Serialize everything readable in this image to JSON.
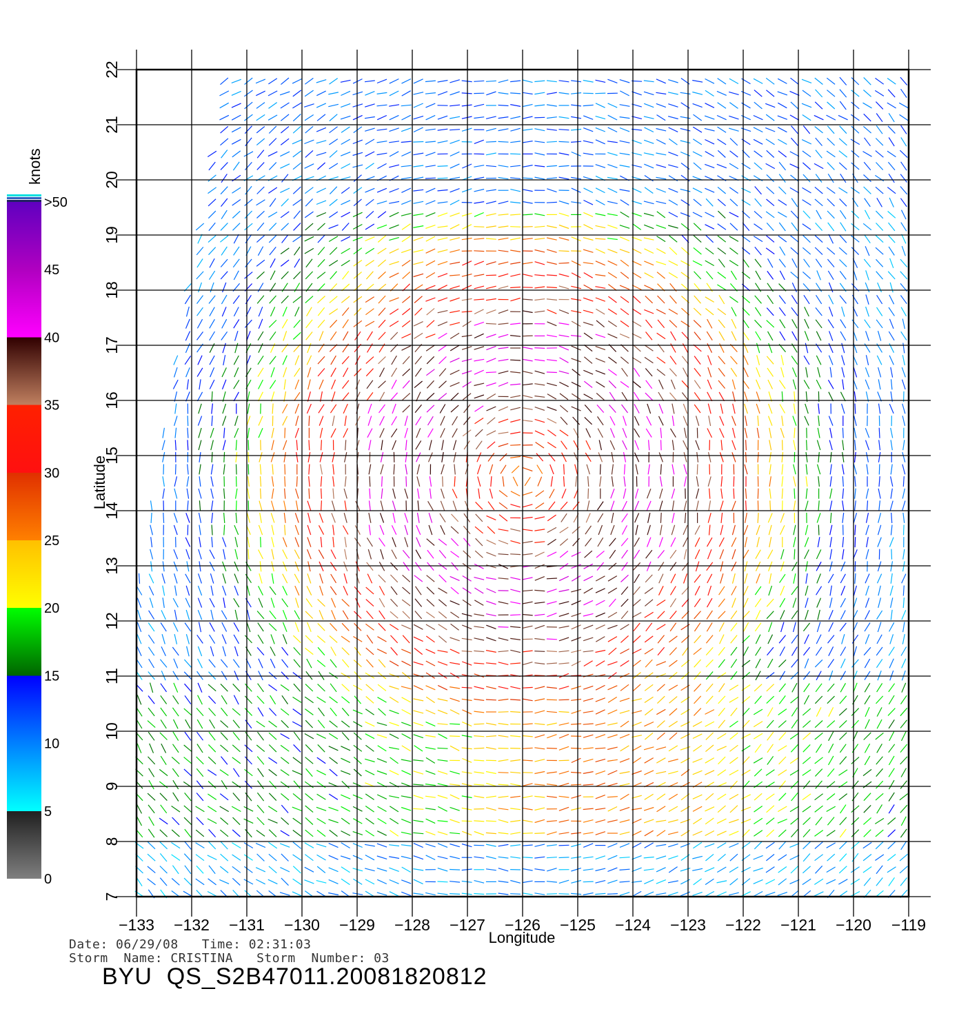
{
  "chart_data": {
    "type": "wind_barb_map",
    "xlabel": "Longitude",
    "ylabel": "Latitude",
    "xlim": [
      -133,
      -119
    ],
    "ylim": [
      7,
      22
    ],
    "x_ticks": [
      -133,
      -132,
      -131,
      -130,
      -129,
      -128,
      -127,
      -126,
      -125,
      -124,
      -123,
      -122,
      -121,
      -120,
      -119
    ],
    "x_tick_labels": [
      "−133",
      "−132",
      "−131",
      "−130",
      "−129",
      "−128",
      "−127",
      "−126",
      "−125",
      "−124",
      "−123",
      "−122",
      "−121",
      "−120",
      "−119"
    ],
    "y_ticks": [
      7,
      8,
      9,
      10,
      11,
      12,
      13,
      14,
      15,
      16,
      17,
      18,
      19,
      20,
      21,
      22
    ],
    "y_tick_labels": [
      "7",
      "8",
      "9",
      "10",
      "11",
      "12",
      "13",
      "14",
      "15",
      "16",
      "17",
      "18",
      "19",
      "20",
      "21",
      "22"
    ],
    "grid": true,
    "storm_center": {
      "lon": -126.0,
      "lat": 14.6
    },
    "colorbar": {
      "title": "knots",
      "labels": [
        "0",
        "5",
        "10",
        "15",
        "20",
        "25",
        "30",
        "35",
        "40",
        "45",
        ">50"
      ],
      "stops": [
        {
          "value": 0,
          "color": "#7f7f7f"
        },
        {
          "value": 5,
          "color": "#202020"
        },
        {
          "value": 5,
          "color": "#00ffff"
        },
        {
          "value": 10,
          "color": "#0080ff"
        },
        {
          "value": 15,
          "color": "#0000ff"
        },
        {
          "value": 15,
          "color": "#006400"
        },
        {
          "value": 20,
          "color": "#00ff00"
        },
        {
          "value": 20,
          "color": "#ffff00"
        },
        {
          "value": 25,
          "color": "#ffc000"
        },
        {
          "value": 25,
          "color": "#ff8000"
        },
        {
          "value": 30,
          "color": "#e03000"
        },
        {
          "value": 30,
          "color": "#ff1010"
        },
        {
          "value": 35,
          "color": "#ff2000"
        },
        {
          "value": 35,
          "color": "#c08060"
        },
        {
          "value": 40,
          "color": "#300000"
        },
        {
          "value": 40,
          "color": "#ff00ff"
        },
        {
          "value": 45,
          "color": "#b000c0"
        },
        {
          "value": 50,
          "color": "#6000c0"
        }
      ]
    }
  },
  "meta": {
    "line1": "Date: 06/29/08   Time: 02:31:03",
    "line2": "Storm  Name: CRISTINA   Storm  Number: 03",
    "title": "BYU  QS_S2B47011.20081820812"
  }
}
